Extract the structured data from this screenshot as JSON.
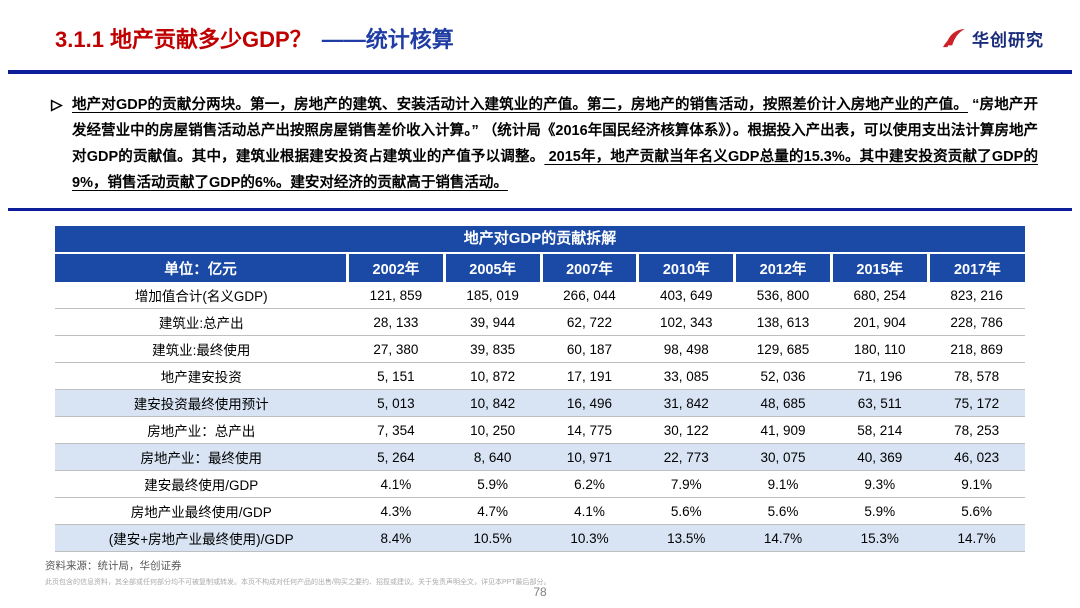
{
  "colors": {
    "title_red": "#C00000",
    "title_blue": "#203DA5",
    "brand_navy": "#1A2C7C",
    "rule_blue": "#0D1E9B",
    "table_blue": "#1A4AA6",
    "row_highlight": "#D8E4F4",
    "logo_red": "#CC2229"
  },
  "header": {
    "title_red": "3.1.1 地产贡献多少GDP？",
    "title_blue": "——统计核算",
    "brand": "华创研究",
    "logo_icon": "huachuang-flame-mark"
  },
  "paragraph": {
    "bullet_icon": "arrowhead-right",
    "seg1": "地产对GDP的贡献分两块。第一，房地产的建筑、安装活动计入建筑业的产值。第二，房地产的销售活动，按照差价计入房地产业的产值。",
    "seg2": " “房地产开发经营业中的房屋销售活动总产出按照房屋销售差价收入计算。” （统计局《2016年国民经济核算体系》）。根据投入产出表，可以使用支出法计算房地产对GDP的贡献值。其中，建筑业根据建安投资占建筑业的产值予以调整。",
    "seg3": " 2015年，地产贡献当年名义GDP总量的15.3%。其中建安投资贡献了GDP的9%，销售活动贡献了GDP的6%。建安对经济的贡献高于销售活动。"
  },
  "table": {
    "title": "地产对GDP的贡献拆解",
    "unit_header": "单位：亿元",
    "year_headers": [
      "2002年",
      "2005年",
      "2007年",
      "2010年",
      "2012年",
      "2015年",
      "2017年"
    ],
    "rows": [
      {
        "label": "增加值合计(名义GDP)",
        "values": [
          "121, 859",
          "185, 019",
          "266, 044",
          "403, 649",
          "536, 800",
          "680, 254",
          "823, 216"
        ],
        "highlight": false
      },
      {
        "label": "建筑业:总产出",
        "values": [
          "28, 133",
          "39, 944",
          "62, 722",
          "102, 343",
          "138, 613",
          "201, 904",
          "228, 786"
        ],
        "highlight": false
      },
      {
        "label": "建筑业:最终使用",
        "values": [
          "27, 380",
          "39, 835",
          "60, 187",
          "98, 498",
          "129, 685",
          "180, 110",
          "218, 869"
        ],
        "highlight": false
      },
      {
        "label": "地产建安投资",
        "values": [
          "5, 151",
          "10, 872",
          "17, 191",
          "33, 085",
          "52, 036",
          "71, 196",
          "78, 578"
        ],
        "highlight": false
      },
      {
        "label": "建安投资最终使用预计",
        "values": [
          "5, 013",
          "10, 842",
          "16, 496",
          "31, 842",
          "48, 685",
          "63, 511",
          "75, 172"
        ],
        "highlight": true
      },
      {
        "label": "房地产业：总产出",
        "values": [
          "7, 354",
          "10, 250",
          "14, 775",
          "30, 122",
          "41, 909",
          "58, 214",
          "78, 253"
        ],
        "highlight": false
      },
      {
        "label": "房地产业：最终使用",
        "values": [
          "5, 264",
          "8, 640",
          "10, 971",
          "22, 773",
          "30, 075",
          "40, 369",
          "46, 023"
        ],
        "highlight": true
      },
      {
        "label": "建安最终使用/GDP",
        "values": [
          "4.1%",
          "5.9%",
          "6.2%",
          "7.9%",
          "9.1%",
          "9.3%",
          "9.1%"
        ],
        "highlight": false
      },
      {
        "label": "房地产业最终使用/GDP",
        "values": [
          "4.3%",
          "4.7%",
          "4.1%",
          "5.6%",
          "5.6%",
          "5.9%",
          "5.6%"
        ],
        "highlight": false
      },
      {
        "label": "(建安+房地产业最终使用)/GDP",
        "values": [
          "8.4%",
          "10.5%",
          "10.3%",
          "13.5%",
          "14.7%",
          "15.3%",
          "14.7%"
        ],
        "highlight": true
      }
    ]
  },
  "footer": {
    "source": "资料来源：统计局，华创证券",
    "disclaimer": "此页包含的信息资料，其全部或任何部分均不可被复制或转发。本页不构成对任何产品的出售/购买之要约、招揽或建议。关于免责声明全文，详见本PPT最后部分。",
    "page": "78"
  }
}
